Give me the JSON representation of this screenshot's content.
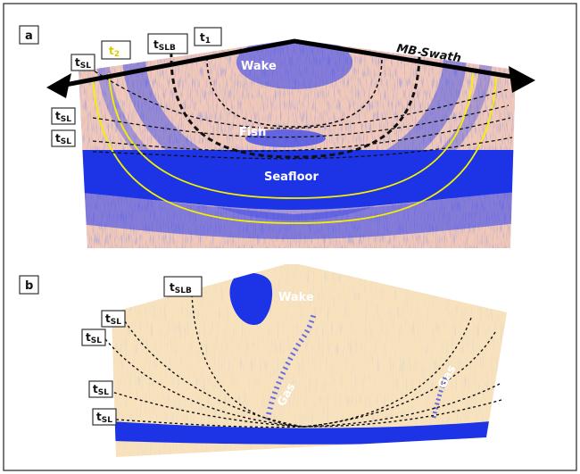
{
  "panels": [
    {
      "letter": "a",
      "labels": {
        "wake": "Wake",
        "fish": "Fish",
        "seafloor": "Seafloor",
        "swath": "MB Swath"
      },
      "time_labels": [
        {
          "main": "t",
          "sub": "SL"
        },
        {
          "main": "t",
          "sub": "2"
        },
        {
          "main": "t",
          "sub": "SLB"
        },
        {
          "main": "t",
          "sub": "1"
        },
        {
          "main": "t",
          "sub": "SL"
        },
        {
          "main": "t",
          "sub": "SL"
        }
      ]
    },
    {
      "letter": "b",
      "labels": {
        "wake": "Wake",
        "gas_left": "Gas",
        "gas_right": "Gas"
      },
      "time_labels": [
        {
          "main": "t",
          "sub": "SLB"
        },
        {
          "main": "t",
          "sub": "SL"
        },
        {
          "main": "t",
          "sub": "SL"
        },
        {
          "main": "t",
          "sub": "SL"
        },
        {
          "main": "t",
          "sub": "SL"
        }
      ]
    }
  ],
  "colors": {
    "echo_background": "#f2c9b8",
    "echo_blue": "#2b3df0",
    "seafloor_blue": "#1d33e6",
    "yellow_curve": "#f4f000",
    "t2_text": "#d8cc00",
    "arrow": "#000000",
    "frame": "#222222"
  }
}
